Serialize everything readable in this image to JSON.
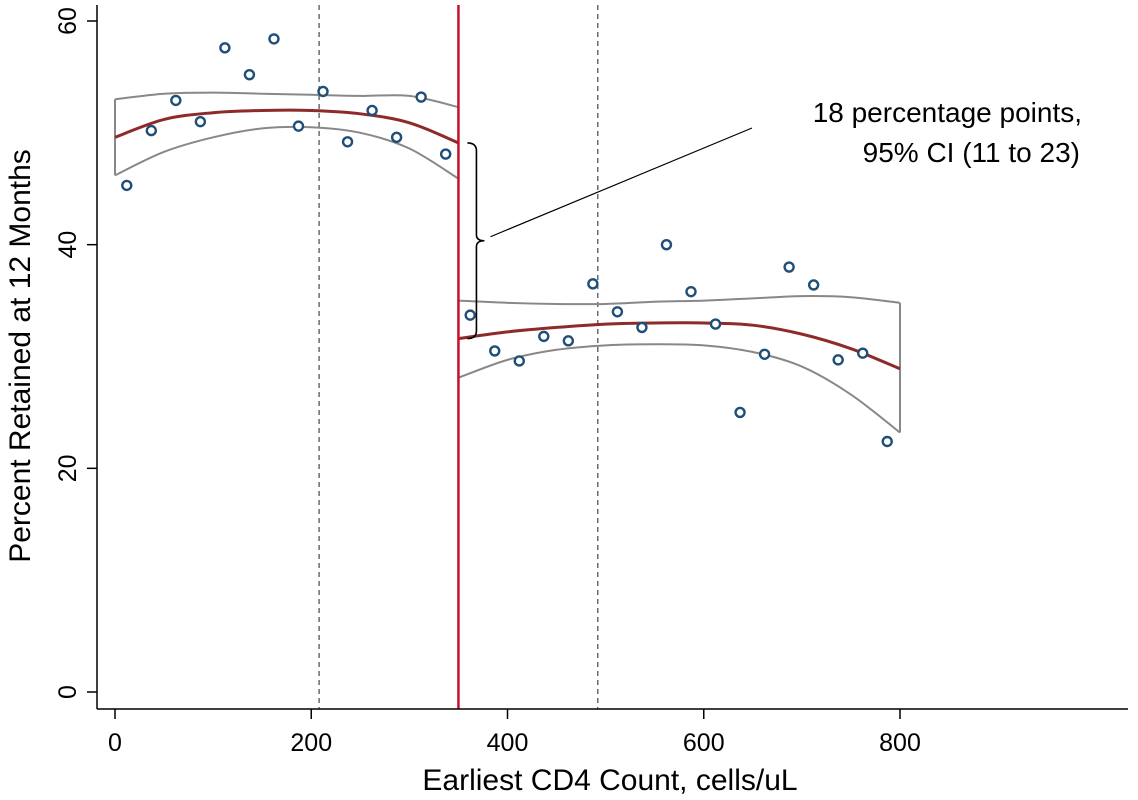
{
  "chart_data": {
    "type": "scatter",
    "title": "",
    "xlabel": "Earliest CD4 Count, cells/uL",
    "ylabel": "Percent Retained at 12 Months",
    "xlim": [
      0,
      800
    ],
    "ylim": [
      0,
      60
    ],
    "x_ticks": [
      0,
      200,
      400,
      600,
      800
    ],
    "y_ticks": [
      0,
      20,
      40,
      60
    ],
    "grid": false,
    "legend": "none",
    "cutoff": 350,
    "reference_lines": [
      208,
      492
    ],
    "points": [
      {
        "x": 12,
        "y": 45.3
      },
      {
        "x": 37,
        "y": 50.2
      },
      {
        "x": 62,
        "y": 52.9
      },
      {
        "x": 87,
        "y": 51.0
      },
      {
        "x": 112,
        "y": 57.6
      },
      {
        "x": 137,
        "y": 55.2
      },
      {
        "x": 162,
        "y": 58.4
      },
      {
        "x": 187,
        "y": 50.6
      },
      {
        "x": 212,
        "y": 53.7
      },
      {
        "x": 237,
        "y": 49.2
      },
      {
        "x": 262,
        "y": 52.0
      },
      {
        "x": 287,
        "y": 49.6
      },
      {
        "x": 312,
        "y": 53.2
      },
      {
        "x": 337,
        "y": 48.1
      },
      {
        "x": 362,
        "y": 33.7
      },
      {
        "x": 387,
        "y": 30.5
      },
      {
        "x": 412,
        "y": 29.6
      },
      {
        "x": 437,
        "y": 31.8
      },
      {
        "x": 462,
        "y": 31.4
      },
      {
        "x": 487,
        "y": 36.5
      },
      {
        "x": 512,
        "y": 34.0
      },
      {
        "x": 537,
        "y": 32.6
      },
      {
        "x": 562,
        "y": 40.0
      },
      {
        "x": 587,
        "y": 35.8
      },
      {
        "x": 612,
        "y": 32.9
      },
      {
        "x": 637,
        "y": 25.0
      },
      {
        "x": 662,
        "y": 30.2
      },
      {
        "x": 687,
        "y": 38.0
      },
      {
        "x": 712,
        "y": 36.4
      },
      {
        "x": 737,
        "y": 29.7
      },
      {
        "x": 762,
        "y": 30.3
      },
      {
        "x": 787,
        "y": 22.4
      }
    ],
    "fit_left": {
      "x": [
        0,
        50,
        100,
        150,
        200,
        250,
        300,
        350
      ],
      "fit": [
        49.6,
        51.2,
        51.8,
        52.0,
        52.0,
        51.7,
        50.9,
        49.1
      ],
      "upper": [
        53.0,
        53.5,
        53.6,
        53.5,
        53.4,
        53.3,
        53.3,
        52.3
      ],
      "lower": [
        46.2,
        48.3,
        49.6,
        50.4,
        50.5,
        50.0,
        48.6,
        45.9
      ]
    },
    "fit_right": {
      "x": [
        350,
        400,
        450,
        500,
        550,
        600,
        650,
        700,
        750,
        800
      ],
      "fit": [
        31.6,
        32.2,
        32.6,
        32.9,
        33.0,
        33.0,
        32.8,
        32.0,
        30.7,
        28.9
      ],
      "upper": [
        35.0,
        34.8,
        34.7,
        34.7,
        34.9,
        35.0,
        35.2,
        35.4,
        35.3,
        34.8
      ],
      "lower": [
        28.1,
        29.7,
        30.6,
        31.0,
        31.1,
        31.0,
        30.4,
        29.1,
        26.6,
        23.2
      ]
    },
    "annotation": {
      "line1": "18 percentage points,",
      "line2": "95% CI (11 to 23)",
      "estimate": 18,
      "ci": [
        11,
        23
      ]
    }
  },
  "colors": {
    "points": "#1f4e79",
    "fit": "#8e2a2a",
    "ci": "#888888",
    "cutoff": "#c8102e",
    "ref": "#555555",
    "axis": "#000000"
  }
}
